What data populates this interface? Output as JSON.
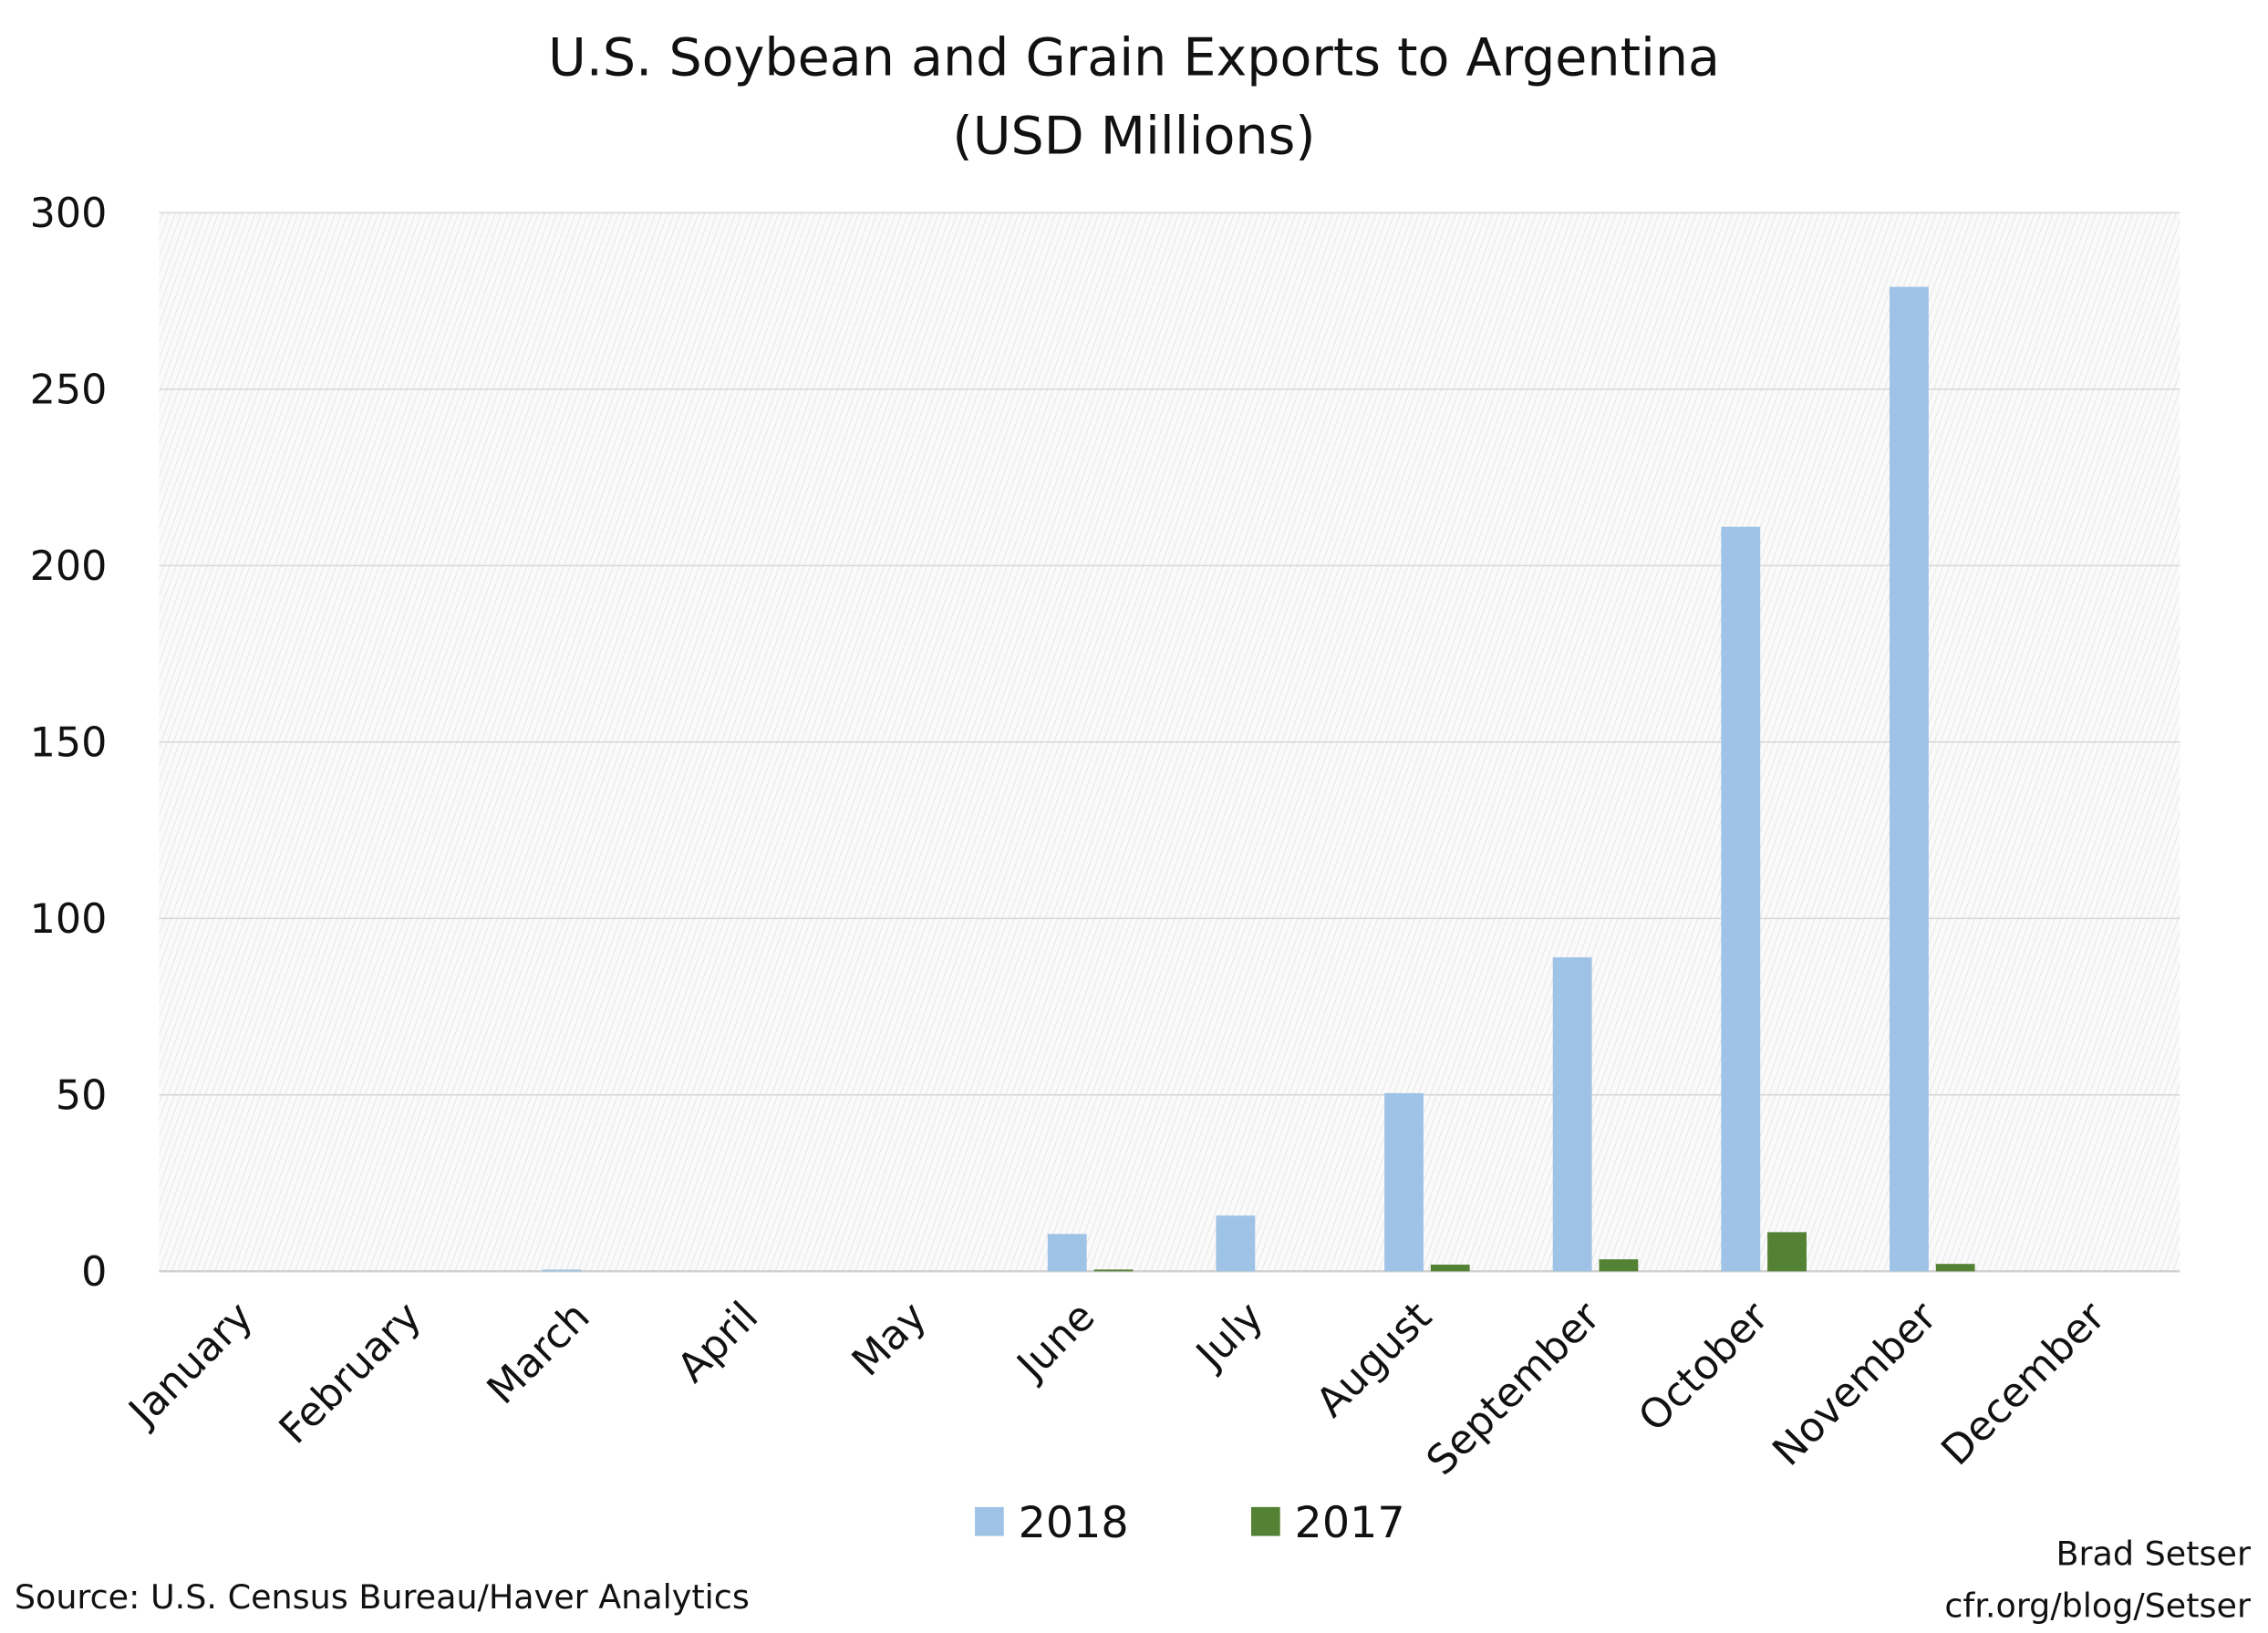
{
  "chart_data": {
    "type": "bar",
    "title": "U.S. Soybean and Grain Exports to Argentina",
    "subtitle": "(USD Millions)",
    "categories": [
      "January",
      "February",
      "March",
      "April",
      "May",
      "June",
      "July",
      "August",
      "September",
      "October",
      "November",
      "December"
    ],
    "series": [
      {
        "name": "2018",
        "color": "#9fc3e6",
        "values": [
          0,
          0,
          0.5,
          0,
          0,
          10.6,
          15.8,
          50.5,
          89,
          211,
          279,
          0
        ]
      },
      {
        "name": "2017",
        "color": "#548235",
        "values": [
          0,
          0,
          0,
          0,
          0,
          0.5,
          0,
          1.9,
          3.4,
          11.1,
          2.1,
          0
        ]
      }
    ],
    "yticks": [
      "0",
      "50",
      "100",
      "150",
      "200",
      "250",
      "300"
    ],
    "ylim": [
      0,
      300
    ],
    "grid": true,
    "legend": "bottom-center",
    "source": "Source: U.S. Census Bureau/Haver Analytics",
    "credit_name": "Brad Setser",
    "credit_url": "cfr.org/blog/Setser"
  }
}
